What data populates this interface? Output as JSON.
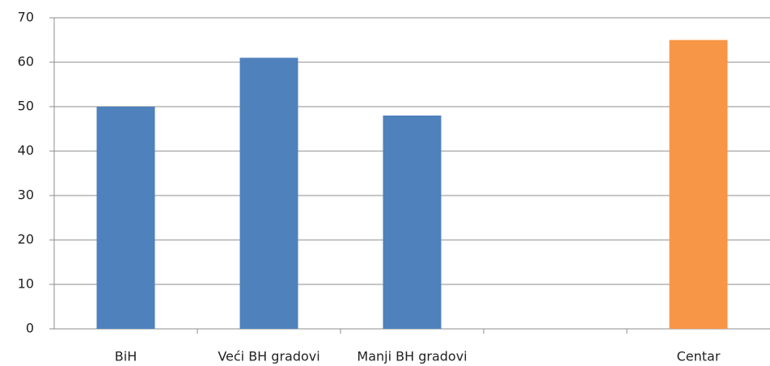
{
  "chart_data": {
    "type": "bar",
    "categories": [
      "BiH",
      "Veći BH gradovi",
      "Manji BH gradovi",
      null,
      "Centar"
    ],
    "values": [
      50,
      61,
      48,
      null,
      65
    ],
    "colors": [
      "#4f81bd",
      "#4f81bd",
      "#4f81bd",
      null,
      "#f79646"
    ],
    "ylim": [
      0,
      70
    ],
    "yticks": [
      0,
      10,
      20,
      30,
      40,
      50,
      60,
      70
    ],
    "grid": true
  }
}
